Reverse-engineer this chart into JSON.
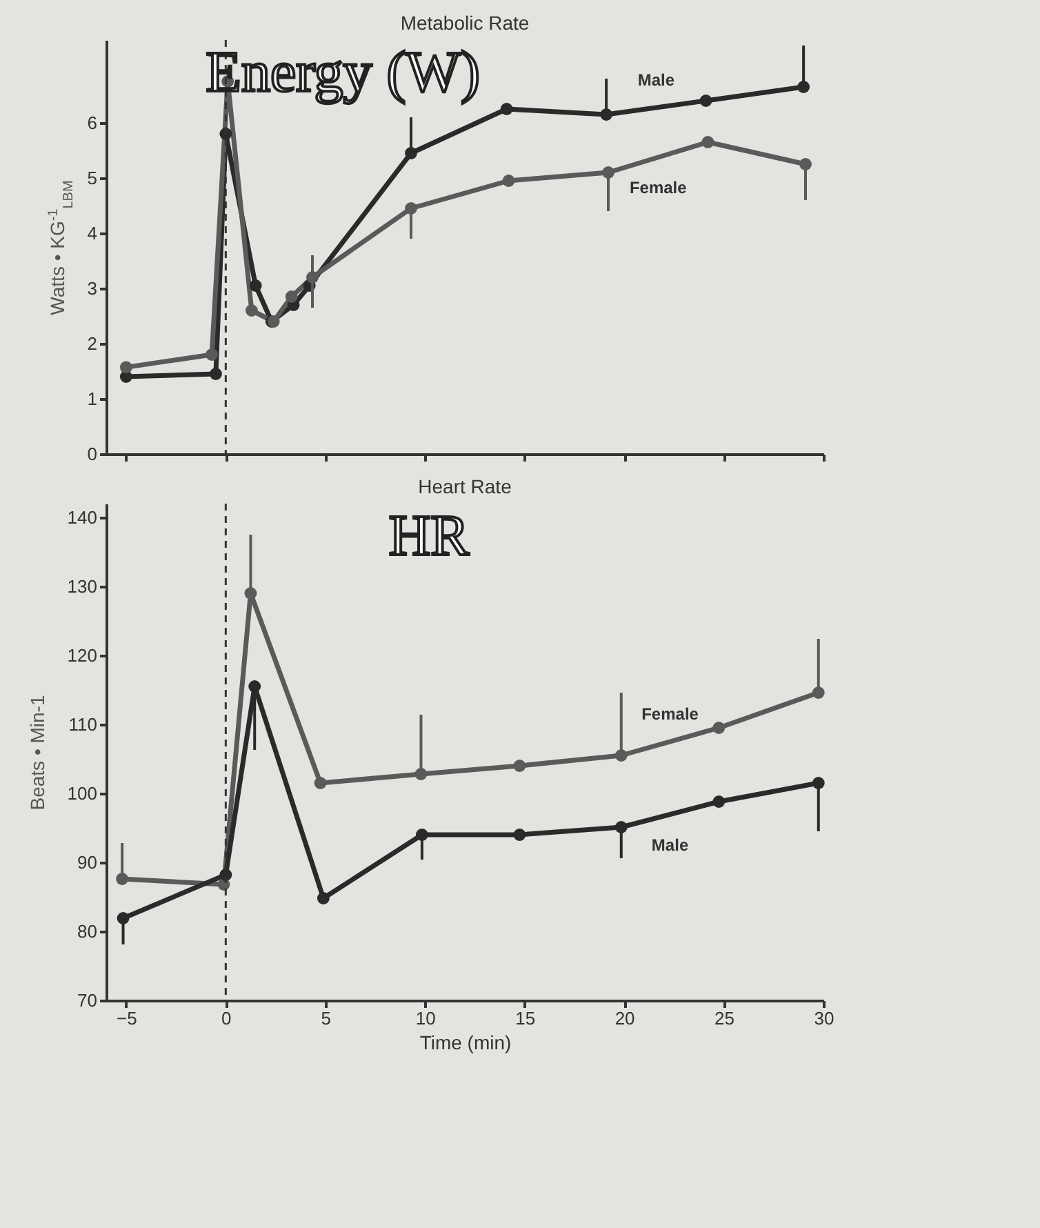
{
  "chart_data": [
    {
      "type": "line",
      "title": "Metabolic Rate",
      "ylabel": "Watts • KG$^{-1}$$_{LBM}$",
      "annotations": [
        "Energy (W)"
      ],
      "xlim": [
        -6,
        30
      ],
      "xticks": [
        -5,
        0,
        5,
        10,
        15,
        20,
        25,
        30
      ],
      "ylim": [
        0,
        7.5
      ],
      "yticks": [
        0,
        1,
        2,
        3,
        4,
        5,
        6
      ],
      "tick_labels": "y",
      "marker": "circle",
      "legend": false,
      "grid": false,
      "ref_lines": [
        {
          "axis": "x",
          "value": 0,
          "line_style": "dashed"
        }
      ],
      "series": [
        {
          "name": "Male",
          "color": "#2a2a2a",
          "x": [
            -5,
            -0.5,
            0,
            1.5,
            2.3,
            3.4,
            4.2,
            9.3,
            14.1,
            19.1,
            24.1,
            29
          ],
          "values": [
            1.4,
            1.45,
            5.8,
            3.05,
            2.4,
            2.7,
            3.05,
            5.45,
            6.25,
            6.15,
            6.4,
            6.65
          ],
          "errors": [
            null,
            null,
            null,
            null,
            null,
            null,
            null,
            [
              5.45,
              6.1
            ],
            null,
            [
              6.15,
              6.8
            ],
            null,
            [
              6.65,
              7.4
            ]
          ]
        },
        {
          "name": "Female",
          "color": "#5a5a5a",
          "x": [
            -5,
            -0.7,
            0.1,
            1.3,
            2.4,
            3.3,
            4.35,
            9.3,
            14.2,
            19.2,
            24.2,
            29.1
          ],
          "values": [
            1.57,
            1.8,
            6.75,
            2.6,
            2.4,
            2.85,
            3.2,
            4.45,
            4.95,
            5.1,
            5.65,
            5.25
          ],
          "errors": [
            null,
            null,
            null,
            null,
            null,
            null,
            [
              2.65,
              3.6
            ],
            [
              3.9,
              4.45
            ],
            null,
            [
              4.4,
              5.1
            ],
            null,
            [
              4.6,
              5.25
            ]
          ]
        }
      ]
    },
    {
      "type": "line",
      "title": "Heart Rate",
      "ylabel": "Beats • Min-1",
      "xlabel": "Time (min)",
      "annotations": [
        "HR"
      ],
      "xlim": [
        -6,
        30
      ],
      "xticks": [
        -5,
        0,
        5,
        10,
        15,
        20,
        25,
        30
      ],
      "ylim": [
        70,
        142
      ],
      "yticks": [
        70,
        80,
        90,
        100,
        110,
        120,
        130,
        140
      ],
      "marker": "circle",
      "legend": false,
      "grid": false,
      "ref_lines": [
        {
          "axis": "x",
          "value": 0,
          "line_style": "dashed"
        }
      ],
      "series": [
        {
          "name": "Female",
          "color": "#5a5a5a",
          "x": [
            -5.2,
            -0.1,
            1.25,
            4.75,
            9.8,
            14.75,
            19.85,
            24.75,
            29.75
          ],
          "values": [
            87.6,
            86.8,
            129,
            101.5,
            102.8,
            104,
            105.5,
            109.5,
            114.6
          ],
          "errors": [
            [
              87.6,
              92.8
            ],
            null,
            [
              129,
              137.5
            ],
            null,
            [
              102.8,
              111.4
            ],
            null,
            [
              105.5,
              114.6
            ],
            null,
            [
              114.6,
              122.4
            ]
          ]
        },
        {
          "name": "Male",
          "color": "#2a2a2a",
          "x": [
            -5.15,
            0,
            1.45,
            4.9,
            9.85,
            14.75,
            19.85,
            24.75,
            29.75
          ],
          "values": [
            81.9,
            88.2,
            115.5,
            84.8,
            94,
            94,
            95.1,
            98.8,
            101.5
          ],
          "errors": [
            [
              78.1,
              81.9
            ],
            null,
            [
              106.3,
              115.5
            ],
            null,
            [
              90.4,
              94
            ],
            null,
            [
              90.6,
              95.1
            ],
            null,
            [
              94.5,
              101.5
            ]
          ]
        }
      ]
    }
  ]
}
